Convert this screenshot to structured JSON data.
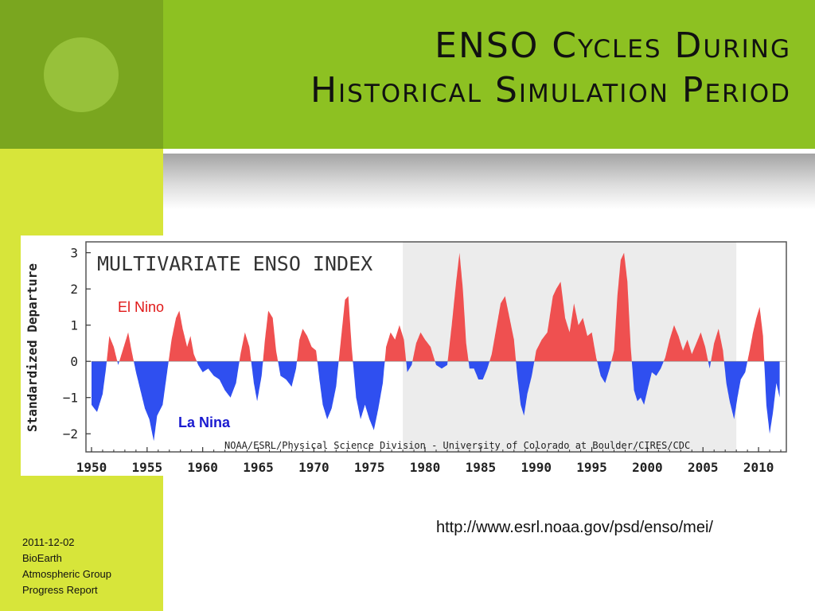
{
  "slide": {
    "title_line1": "ENSO Cycles During",
    "title_line2": "Historical Simulation Period",
    "source_url": "http://www.esrl.noaa.gov/psd/enso/mei/",
    "footer": [
      "2011-12-02",
      "BioEarth",
      "Atmospheric Group",
      "Progress Report"
    ]
  },
  "colors": {
    "sidebar": "#d7e53a",
    "sidebar_top": "#7aa61f",
    "title_band": "#8dc122",
    "positive": "#ef5050",
    "negative": "#2f4ff0",
    "el_nino_label": "#e01818",
    "la_nina_label": "#1a1ad0"
  },
  "chart_data": {
    "type": "area",
    "title": "MULTIVARIATE ENSO INDEX",
    "ylabel": "Standardized Departure",
    "xlabel": "",
    "credit": "NOAA/ESRL/Physical Science Division - University of Colorado at Boulder/CIRES/CDC",
    "xlim": [
      1949.5,
      2012.5
    ],
    "ylim": [
      -2.5,
      3.3
    ],
    "x_ticks": [
      1950,
      1955,
      1960,
      1965,
      1970,
      1975,
      1980,
      1985,
      1990,
      1995,
      2000,
      2005,
      2010
    ],
    "y_ticks": [
      3,
      2,
      1,
      0,
      -1,
      -2
    ],
    "y_tick_labels": [
      "3",
      "2",
      "1",
      "0",
      "−1",
      "−2"
    ],
    "shaded_range": [
      1978,
      2008
    ],
    "annotations": {
      "el_nino": "El Nino",
      "la_nina": "La Nina"
    },
    "series": [
      {
        "name": "MEI",
        "x": [
          1950.0,
          1950.5,
          1951.0,
          1951.3,
          1951.6,
          1952.0,
          1952.4,
          1953.0,
          1953.3,
          1953.6,
          1954.0,
          1954.4,
          1954.8,
          1955.2,
          1955.6,
          1955.9,
          1956.4,
          1956.8,
          1957.2,
          1957.6,
          1957.9,
          1958.2,
          1958.6,
          1958.9,
          1959.2,
          1959.6,
          1960.0,
          1960.5,
          1961.0,
          1961.5,
          1962.0,
          1962.5,
          1963.0,
          1963.4,
          1963.8,
          1964.2,
          1964.6,
          1964.9,
          1965.3,
          1965.6,
          1965.9,
          1966.3,
          1966.6,
          1967.0,
          1967.5,
          1968.0,
          1968.4,
          1968.7,
          1969.0,
          1969.4,
          1969.8,
          1970.2,
          1970.5,
          1970.8,
          1971.2,
          1971.6,
          1972.0,
          1972.4,
          1972.8,
          1973.1,
          1973.4,
          1973.8,
          1974.2,
          1974.6,
          1975.0,
          1975.4,
          1975.8,
          1976.2,
          1976.5,
          1976.9,
          1977.3,
          1977.7,
          1978.1,
          1978.4,
          1978.8,
          1979.2,
          1979.6,
          1980.0,
          1980.5,
          1981.0,
          1981.5,
          1982.0,
          1982.4,
          1982.8,
          1983.1,
          1983.4,
          1983.7,
          1984.0,
          1984.4,
          1984.8,
          1985.2,
          1985.6,
          1986.0,
          1986.4,
          1986.8,
          1987.2,
          1987.6,
          1988.0,
          1988.3,
          1988.6,
          1988.9,
          1989.2,
          1989.6,
          1990.0,
          1990.5,
          1991.0,
          1991.5,
          1991.8,
          1992.2,
          1992.6,
          1993.0,
          1993.4,
          1993.8,
          1994.2,
          1994.6,
          1995.0,
          1995.4,
          1995.8,
          1996.2,
          1996.6,
          1997.0,
          1997.3,
          1997.6,
          1997.9,
          1998.2,
          1998.5,
          1998.8,
          1999.1,
          1999.4,
          1999.7,
          2000.0,
          2000.4,
          2000.8,
          2001.2,
          2001.6,
          2002.0,
          2002.4,
          2002.8,
          2003.2,
          2003.6,
          2004.0,
          2004.4,
          2004.8,
          2005.2,
          2005.6,
          2006.0,
          2006.4,
          2006.8,
          2007.1,
          2007.4,
          2007.8,
          2008.1,
          2008.4,
          2008.8,
          2009.2,
          2009.5,
          2009.8,
          2010.1,
          2010.4,
          2010.7,
          2011.0,
          2011.3,
          2011.6,
          2011.9
        ],
        "values": [
          -1.2,
          -1.4,
          -0.9,
          -0.2,
          0.7,
          0.4,
          -0.1,
          0.5,
          0.8,
          0.3,
          -0.3,
          -0.8,
          -1.3,
          -1.6,
          -2.2,
          -1.5,
          -1.2,
          -0.3,
          0.6,
          1.2,
          1.4,
          0.9,
          0.4,
          0.7,
          0.2,
          -0.1,
          -0.3,
          -0.2,
          -0.4,
          -0.5,
          -0.8,
          -1.0,
          -0.6,
          0.2,
          0.8,
          0.4,
          -0.6,
          -1.1,
          -0.4,
          0.6,
          1.4,
          1.2,
          0.3,
          -0.4,
          -0.5,
          -0.7,
          -0.2,
          0.6,
          0.9,
          0.7,
          0.4,
          0.3,
          -0.5,
          -1.2,
          -1.6,
          -1.3,
          -0.7,
          0.5,
          1.7,
          1.8,
          0.4,
          -1.0,
          -1.6,
          -1.2,
          -1.6,
          -1.9,
          -1.3,
          -0.6,
          0.4,
          0.8,
          0.6,
          1.0,
          0.6,
          -0.3,
          -0.1,
          0.5,
          0.8,
          0.6,
          0.4,
          -0.1,
          -0.2,
          -0.1,
          1.0,
          2.2,
          3.0,
          2.0,
          0.5,
          -0.2,
          -0.2,
          -0.5,
          -0.5,
          -0.2,
          0.2,
          0.9,
          1.6,
          1.8,
          1.2,
          0.6,
          -0.4,
          -1.2,
          -1.5,
          -0.9,
          -0.4,
          0.3,
          0.6,
          0.8,
          1.8,
          2.0,
          2.2,
          1.2,
          0.8,
          1.6,
          1.0,
          1.2,
          0.7,
          0.8,
          0.1,
          -0.4,
          -0.6,
          -0.2,
          0.3,
          1.8,
          2.8,
          3.0,
          2.2,
          0.4,
          -0.8,
          -1.1,
          -1.0,
          -1.2,
          -0.8,
          -0.3,
          -0.4,
          -0.2,
          0.1,
          0.6,
          1.0,
          0.7,
          0.3,
          0.6,
          0.2,
          0.5,
          0.8,
          0.4,
          -0.2,
          0.5,
          0.9,
          0.3,
          -0.6,
          -1.1,
          -1.6,
          -1.0,
          -0.5,
          -0.3,
          0.3,
          0.8,
          1.2,
          1.5,
          0.7,
          -1.2,
          -2.0,
          -1.4,
          -0.6,
          -1.0
        ]
      }
    ]
  }
}
